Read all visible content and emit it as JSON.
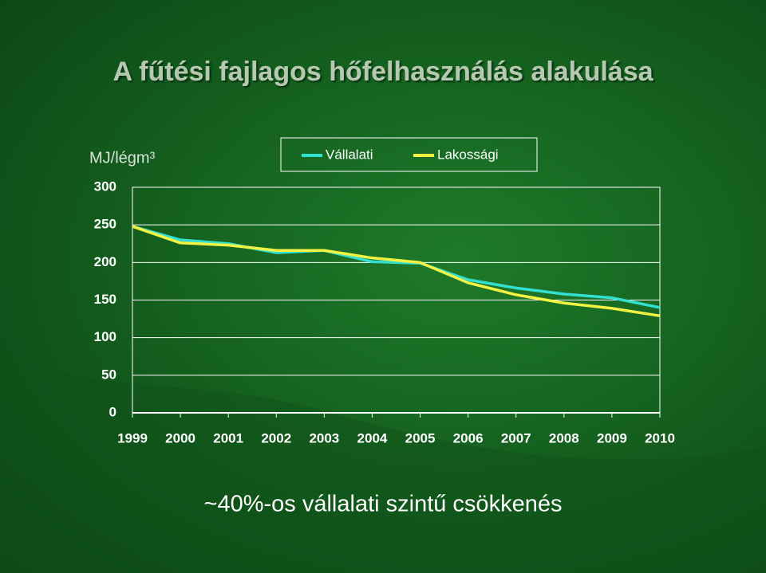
{
  "chart_data": {
    "type": "line",
    "title": "A fűtési fajlagos hőfelhasználás alakulása",
    "y_axis_label": "MJ/légm³",
    "annotation": "~40%-os vállalati szintű csökkenés",
    "categories": [
      "1999",
      "2000",
      "2001",
      "2002",
      "2003",
      "2004",
      "2005",
      "2006",
      "2007",
      "2008",
      "2009",
      "2010"
    ],
    "series": [
      {
        "name": "Vállalati",
        "color": "#33e0d0",
        "values": [
          248,
          230,
          225,
          213,
          216,
          201,
          199,
          177,
          166,
          158,
          153,
          140
        ]
      },
      {
        "name": "Lakossági",
        "color": "#f2f244",
        "values": [
          248,
          226,
          223,
          216,
          216,
          206,
          200,
          173,
          157,
          146,
          139,
          129
        ]
      }
    ],
    "ylim": [
      0,
      300
    ],
    "yticks": [
      0,
      50,
      100,
      150,
      200,
      250,
      300
    ],
    "grid": true,
    "legend": "top"
  }
}
